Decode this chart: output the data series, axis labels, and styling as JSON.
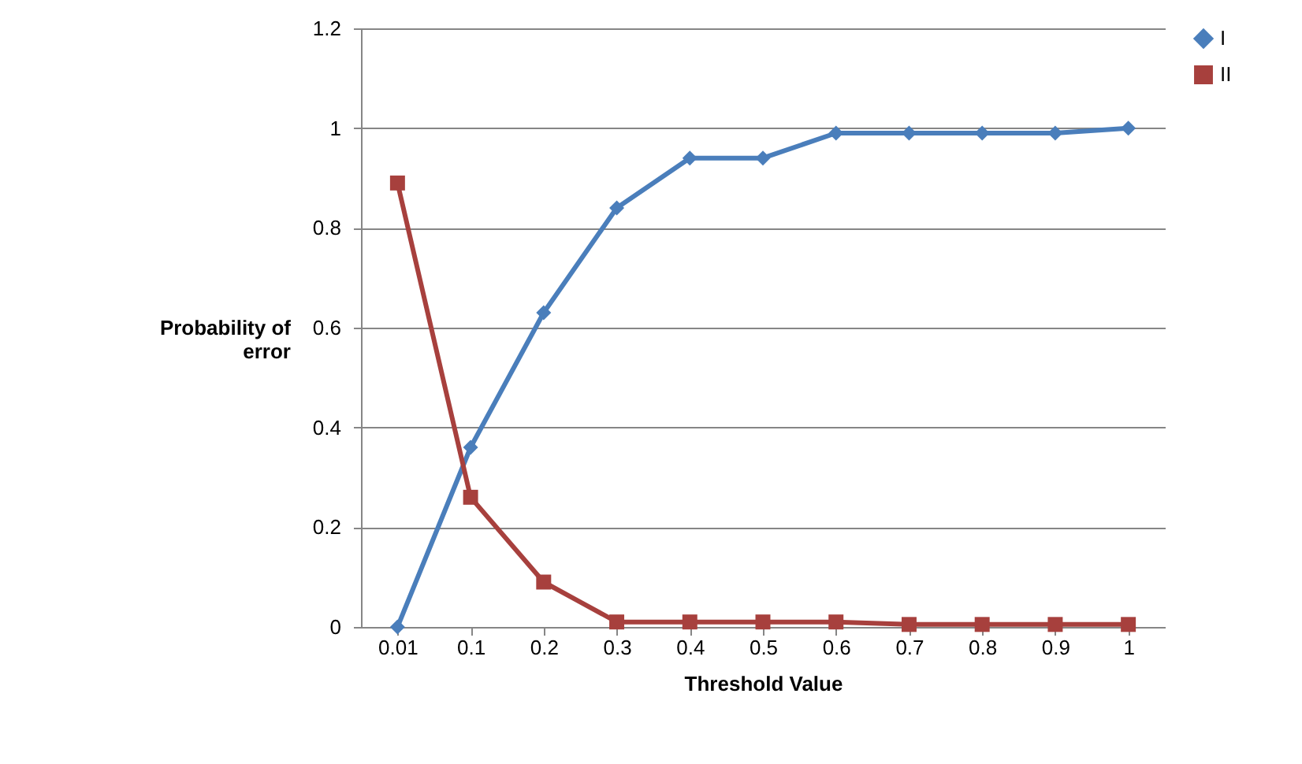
{
  "chart_data": {
    "type": "line",
    "xlabel": "Threshold Value",
    "ylabel": "Probability of error",
    "categories": [
      "0.01",
      "0.1",
      "0.2",
      "0.3",
      "0.4",
      "0.5",
      "0.6",
      "0.7",
      "0.8",
      "0.9",
      "1"
    ],
    "series": [
      {
        "name": "I",
        "color": "#4a7ebb",
        "marker": "diamond",
        "values": [
          0,
          0.36,
          0.63,
          0.84,
          0.94,
          0.94,
          0.99,
          0.99,
          0.99,
          0.99,
          1.0
        ]
      },
      {
        "name": "II",
        "color": "#a7403d",
        "marker": "square",
        "values": [
          0.89,
          0.26,
          0.09,
          0.01,
          0.01,
          0.01,
          0.01,
          0.005,
          0.005,
          0.005,
          0.005
        ]
      }
    ],
    "ylim": [
      0,
      1.2
    ],
    "yticks": [
      {
        "value": 0,
        "label": "0"
      },
      0.2,
      0.4,
      0.6,
      0.8,
      {
        "value": 1,
        "label": "1"
      },
      1.2
    ],
    "grid": "y",
    "legend": "right",
    "line_style": "solid"
  }
}
